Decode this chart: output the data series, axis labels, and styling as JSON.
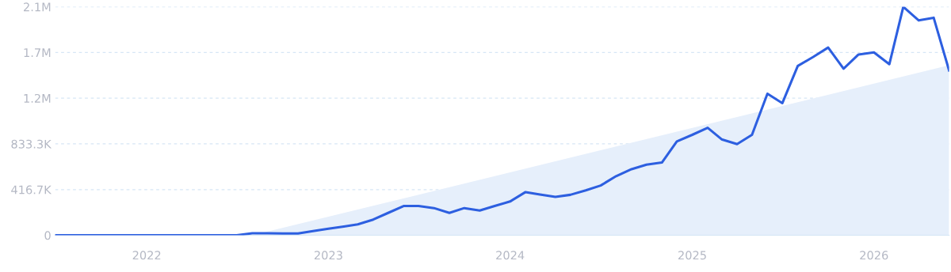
{
  "chart_data": {
    "type": "line",
    "x": [
      "2021-07",
      "2021-08",
      "2021-09",
      "2021-10",
      "2021-11",
      "2021-12",
      "2022-01",
      "2022-02",
      "2022-03",
      "2022-04",
      "2022-05",
      "2022-06",
      "2022-07",
      "2022-08",
      "2022-09",
      "2022-10",
      "2022-11",
      "2022-12",
      "2023-01",
      "2023-02",
      "2023-03",
      "2023-04",
      "2023-05",
      "2023-06",
      "2023-07",
      "2023-08",
      "2023-09",
      "2023-10",
      "2023-11",
      "2023-12",
      "2024-01",
      "2024-02",
      "2024-03",
      "2024-04",
      "2024-05",
      "2024-06",
      "2024-07",
      "2024-08",
      "2024-09",
      "2024-10",
      "2024-11",
      "2024-12",
      "2025-01",
      "2025-02",
      "2025-03",
      "2025-04",
      "2025-05",
      "2025-06",
      "2025-07",
      "2025-08",
      "2025-09",
      "2025-10",
      "2025-11",
      "2025-12",
      "2026-01",
      "2026-02",
      "2026-03",
      "2026-04",
      "2026-05",
      "2026-06"
    ],
    "series": [
      {
        "type": "area",
        "color": "#e6effb",
        "x": [
          "2022-08",
          "2026-06"
        ],
        "values": [
          0,
          1550000
        ]
      },
      {
        "color": "#2d5fe0",
        "values": [
          0,
          0,
          0,
          0,
          0,
          0,
          0,
          0,
          0,
          0,
          0,
          0,
          0,
          19000,
          19000,
          16000,
          16000,
          39000,
          60000,
          80000,
          99000,
          143000,
          204000,
          267000,
          267000,
          248000,
          204000,
          248000,
          226000,
          267000,
          308000,
          394000,
          372000,
          350000,
          369000,
          410000,
          454000,
          539000,
          603000,
          644000,
          663000,
          856000,
          916000,
          980000,
          875000,
          831000,
          916000,
          1291000,
          1205000,
          1544000,
          1626000,
          1712000,
          1519000,
          1648000,
          1668000,
          1560000,
          2083000,
          1959000,
          1984000,
          1503000
        ]
      }
    ],
    "xlim": [
      "2021-07",
      "2026-06"
    ],
    "xticks": [
      "2022",
      "2023",
      "2024",
      "2025",
      "2026"
    ],
    "ylim": [
      0,
      2083333
    ],
    "yticks": [
      0,
      {
        "value": 416667,
        "label": "416.7K"
      },
      {
        "value": 833333,
        "label": "833.3K"
      },
      {
        "value": 1250000,
        "label": "1.2M"
      },
      {
        "value": 1666667,
        "label": "1.7M"
      },
      {
        "value": 2083333,
        "label": "2.1M"
      }
    ],
    "grid": "y",
    "legend": false
  }
}
